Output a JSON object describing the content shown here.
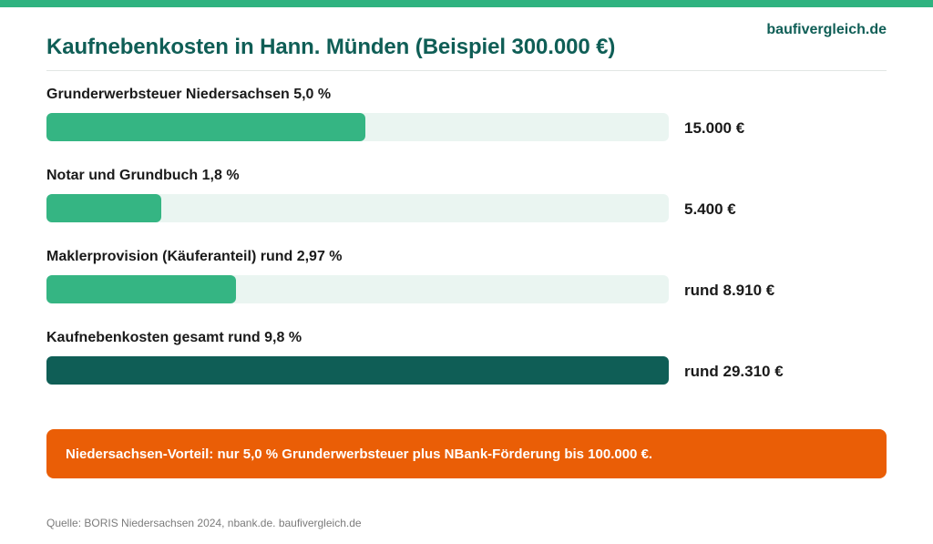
{
  "brand": "baufivergleich.de",
  "colors": {
    "topbar": "#2fb380",
    "bar_fill": "#35b583",
    "bar_total": "#0f5e56",
    "track": "#eaf5f1",
    "notice": "#ea5e06"
  },
  "chart_data": {
    "type": "bar",
    "orientation": "horizontal",
    "title": "Kaufnebenkosten in Hann. Münden (Beispiel 300.000 €)",
    "xlabel": "",
    "ylabel": "",
    "unit": "€",
    "xlim": [
      0,
      29310
    ],
    "grid": false,
    "categories": [
      "Grunderwerbsteuer Niedersachsen 5,0 %",
      "Notar und Grundbuch 1,8 %",
      "Maklerprovision (Käuferanteil) rund 2,97 %",
      "Kaufnebenkosten gesamt rund 9,8 %"
    ],
    "values": [
      15000,
      5400,
      8910,
      29310
    ],
    "value_labels": [
      "15.000 €",
      "5.400 €",
      "rund 8.910 €",
      "rund 29.310 €"
    ]
  },
  "notice": "Niedersachsen-Vorteil: nur 5,0 % Grunderwerbsteuer plus NBank-Förderung bis 100.000 €.",
  "source": "Quelle: BORIS Niedersachsen 2024, nbank.de. baufivergleich.de"
}
